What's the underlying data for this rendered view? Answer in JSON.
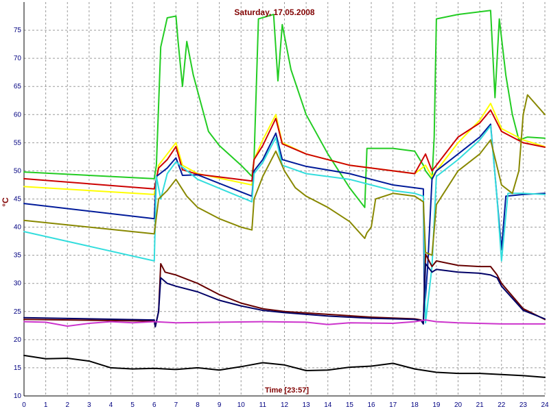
{
  "chart_data": {
    "type": "line",
    "title": "Saturday, 17.05.2008",
    "xlabel": "Time [23:57]",
    "ylabel": "°C",
    "xlim": [
      0,
      24
    ],
    "ylim": [
      10,
      80
    ],
    "x_ticks": [
      0,
      1,
      2,
      3,
      4,
      5,
      6,
      7,
      8,
      9,
      10,
      11,
      12,
      13,
      14,
      15,
      16,
      17,
      18,
      19,
      20,
      21,
      22,
      23,
      24
    ],
    "y_ticks": [
      10,
      15,
      20,
      25,
      30,
      35,
      40,
      45,
      50,
      55,
      60,
      65,
      70,
      75
    ],
    "grid": true,
    "series": [
      {
        "color": "#22cc22",
        "points": [
          [
            0,
            49.8
          ],
          [
            6,
            48.6
          ],
          [
            6.1,
            51
          ],
          [
            6.3,
            72
          ],
          [
            6.6,
            77.2
          ],
          [
            7.0,
            77.5
          ],
          [
            7.1,
            73
          ],
          [
            7.3,
            65
          ],
          [
            7.5,
            73
          ],
          [
            7.8,
            67
          ],
          [
            8.5,
            57
          ],
          [
            9,
            54.5
          ],
          [
            10,
            51
          ],
          [
            10.5,
            49
          ],
          [
            10.6,
            52
          ],
          [
            10.8,
            77
          ],
          [
            11.5,
            77.8
          ],
          [
            11.7,
            66
          ],
          [
            11.9,
            76
          ],
          [
            12.3,
            68
          ],
          [
            13,
            60
          ],
          [
            14,
            53
          ],
          [
            15,
            47
          ],
          [
            15.7,
            43.5
          ],
          [
            15.8,
            54
          ],
          [
            17,
            54
          ],
          [
            18,
            53.5
          ],
          [
            18.4,
            51
          ],
          [
            18.5,
            50
          ],
          [
            18.8,
            48.5
          ],
          [
            18.9,
            56
          ],
          [
            19.0,
            77
          ],
          [
            20,
            77.8
          ],
          [
            21.5,
            78.5
          ],
          [
            21.7,
            63
          ],
          [
            21.9,
            77
          ],
          [
            22.2,
            67
          ],
          [
            22.5,
            60
          ],
          [
            22.8,
            55.5
          ],
          [
            23.2,
            56
          ],
          [
            24,
            55.8
          ]
        ]
      },
      {
        "color": "#ffff00",
        "points": [
          [
            0,
            47.2
          ],
          [
            6,
            45.8
          ],
          [
            6.2,
            51
          ],
          [
            6.6,
            53
          ],
          [
            7,
            55
          ],
          [
            7.3,
            51
          ],
          [
            8,
            49.5
          ],
          [
            10.5,
            47.5
          ],
          [
            10.6,
            52
          ],
          [
            11,
            55.5
          ],
          [
            11.6,
            60
          ],
          [
            11.9,
            55
          ],
          [
            13,
            53
          ],
          [
            15,
            51
          ],
          [
            16,
            50.5
          ],
          [
            17,
            50
          ],
          [
            18,
            49.5
          ],
          [
            18.5,
            51
          ],
          [
            18.8,
            49
          ],
          [
            19,
            50
          ],
          [
            20,
            55
          ],
          [
            21,
            59
          ],
          [
            21.5,
            62
          ],
          [
            22,
            57.5
          ],
          [
            23,
            55.5
          ],
          [
            24,
            54.3
          ]
        ]
      },
      {
        "color": "#cc0000",
        "points": [
          [
            0,
            48.6
          ],
          [
            6,
            46.8
          ],
          [
            6.2,
            50.5
          ],
          [
            6.6,
            52
          ],
          [
            7,
            54.3
          ],
          [
            7.3,
            50.2
          ],
          [
            8,
            49.4
          ],
          [
            10.5,
            48.2
          ],
          [
            10.6,
            52
          ],
          [
            11,
            54.5
          ],
          [
            11.6,
            59.3
          ],
          [
            11.9,
            54.8
          ],
          [
            13,
            53
          ],
          [
            15,
            51
          ],
          [
            17,
            50
          ],
          [
            18,
            49.5
          ],
          [
            18.5,
            53
          ],
          [
            18.8,
            50
          ],
          [
            19,
            51
          ],
          [
            20,
            56
          ],
          [
            21,
            58.5
          ],
          [
            21.5,
            60.8
          ],
          [
            22,
            57
          ],
          [
            23,
            55
          ],
          [
            24,
            54.2
          ]
        ]
      },
      {
        "color": "#001a99",
        "points": [
          [
            0,
            44.2
          ],
          [
            6,
            41.5
          ],
          [
            6.1,
            49
          ],
          [
            6.6,
            50.5
          ],
          [
            7,
            52.3
          ],
          [
            7.3,
            49.2
          ],
          [
            8,
            49.3
          ],
          [
            10.5,
            45.5
          ],
          [
            10.6,
            50
          ],
          [
            11,
            52
          ],
          [
            11.6,
            56.7
          ],
          [
            11.9,
            52
          ],
          [
            13,
            50.8
          ],
          [
            15,
            49.5
          ],
          [
            16,
            48.5
          ],
          [
            17,
            47.5
          ],
          [
            18,
            47
          ],
          [
            18.4,
            46.8
          ],
          [
            18.45,
            25
          ],
          [
            18.6,
            33
          ],
          [
            18.8,
            48.5
          ],
          [
            19,
            50
          ],
          [
            20,
            53
          ],
          [
            21,
            56
          ],
          [
            21.5,
            58.3
          ],
          [
            21.8,
            45
          ],
          [
            22,
            36
          ],
          [
            22.2,
            45.5
          ],
          [
            23,
            45.8
          ],
          [
            24,
            46
          ]
        ]
      },
      {
        "color": "#33dddd",
        "points": [
          [
            0,
            39.2
          ],
          [
            6,
            34
          ],
          [
            6.1,
            49
          ],
          [
            6.3,
            45
          ],
          [
            6.6,
            49.5
          ],
          [
            7,
            51.6
          ],
          [
            8,
            48.5
          ],
          [
            10.5,
            44.5
          ],
          [
            10.6,
            49.5
          ],
          [
            11,
            51.5
          ],
          [
            11.6,
            55.9
          ],
          [
            11.9,
            51
          ],
          [
            13,
            49.5
          ],
          [
            15,
            48.5
          ],
          [
            16,
            47.5
          ],
          [
            17,
            46.5
          ],
          [
            18,
            46
          ],
          [
            18.4,
            45.5
          ],
          [
            18.5,
            23
          ],
          [
            18.8,
            33
          ],
          [
            19,
            49
          ],
          [
            20,
            52
          ],
          [
            21,
            55.5
          ],
          [
            21.5,
            58
          ],
          [
            21.8,
            45
          ],
          [
            22,
            34
          ],
          [
            22.3,
            46
          ],
          [
            23,
            46
          ],
          [
            24,
            45.8
          ]
        ]
      },
      {
        "color": "#888800",
        "points": [
          [
            0,
            41.2
          ],
          [
            6,
            38.8
          ],
          [
            6.2,
            45
          ],
          [
            6.6,
            46.5
          ],
          [
            7,
            48.5
          ],
          [
            7.5,
            45.5
          ],
          [
            8,
            43.5
          ],
          [
            9,
            41.5
          ],
          [
            10,
            40
          ],
          [
            10.5,
            39.5
          ],
          [
            10.6,
            45
          ],
          [
            11,
            49
          ],
          [
            11.6,
            53.5
          ],
          [
            12,
            50
          ],
          [
            12.5,
            47
          ],
          [
            13,
            45.5
          ],
          [
            14,
            43.5
          ],
          [
            15,
            41
          ],
          [
            15.7,
            38
          ],
          [
            15.8,
            39
          ],
          [
            16,
            40
          ],
          [
            16.2,
            45
          ],
          [
            17,
            46
          ],
          [
            18,
            45.5
          ],
          [
            18.4,
            44.5
          ],
          [
            18.5,
            35.5
          ],
          [
            18.8,
            35
          ],
          [
            19,
            44
          ],
          [
            20,
            50
          ],
          [
            21,
            53
          ],
          [
            21.5,
            55.5
          ],
          [
            22,
            47.5
          ],
          [
            22.5,
            46
          ],
          [
            22.8,
            50
          ],
          [
            23,
            60
          ],
          [
            23.2,
            63.5
          ],
          [
            24,
            60
          ]
        ]
      },
      {
        "color": "#660000",
        "points": [
          [
            0,
            23.6
          ],
          [
            6,
            23.3
          ],
          [
            6.05,
            22.3
          ],
          [
            6.2,
            25
          ],
          [
            6.3,
            33.5
          ],
          [
            6.5,
            32
          ],
          [
            7,
            31.5
          ],
          [
            8,
            30
          ],
          [
            9,
            28
          ],
          [
            10,
            26.5
          ],
          [
            11,
            25.5
          ],
          [
            12,
            25
          ],
          [
            14,
            24.5
          ],
          [
            16,
            24
          ],
          [
            18,
            23.7
          ],
          [
            18.3,
            23.5
          ],
          [
            18.4,
            23
          ],
          [
            18.5,
            35.2
          ],
          [
            18.8,
            33
          ],
          [
            19,
            34
          ],
          [
            20,
            33.2
          ],
          [
            21,
            33
          ],
          [
            21.5,
            33
          ],
          [
            21.8,
            31.5
          ],
          [
            22,
            30
          ],
          [
            23,
            25.5
          ],
          [
            24,
            23.6
          ]
        ]
      },
      {
        "color": "#000066",
        "points": [
          [
            0,
            23.9
          ],
          [
            6,
            23.5
          ],
          [
            6.05,
            22.3
          ],
          [
            6.2,
            25
          ],
          [
            6.3,
            31
          ],
          [
            6.6,
            30
          ],
          [
            7,
            29.5
          ],
          [
            8,
            28.5
          ],
          [
            9,
            27
          ],
          [
            10,
            26
          ],
          [
            11,
            25.2
          ],
          [
            12,
            24.8
          ],
          [
            14,
            24.2
          ],
          [
            16,
            23.8
          ],
          [
            18,
            23.6
          ],
          [
            18.3,
            23.4
          ],
          [
            18.4,
            22.8
          ],
          [
            18.5,
            33.5
          ],
          [
            18.8,
            32
          ],
          [
            19,
            32.5
          ],
          [
            20,
            32
          ],
          [
            21,
            31.8
          ],
          [
            21.5,
            31.5
          ],
          [
            21.8,
            31
          ],
          [
            22,
            29.5
          ],
          [
            23,
            25.2
          ],
          [
            24,
            23.7
          ]
        ]
      },
      {
        "color": "#cc33cc",
        "points": [
          [
            0,
            23.2
          ],
          [
            1,
            23.1
          ],
          [
            2,
            22.4
          ],
          [
            3,
            22.9
          ],
          [
            4,
            23.2
          ],
          [
            5,
            23.0
          ],
          [
            6,
            23.2
          ],
          [
            7,
            23.0
          ],
          [
            9,
            23.1
          ],
          [
            11,
            23.2
          ],
          [
            13,
            23.1
          ],
          [
            14,
            22.7
          ],
          [
            15,
            23.0
          ],
          [
            17,
            22.9
          ],
          [
            18,
            23.2
          ],
          [
            18.5,
            23.5
          ],
          [
            19,
            23.2
          ],
          [
            20,
            23.0
          ],
          [
            22,
            22.8
          ],
          [
            24,
            22.8
          ]
        ]
      },
      {
        "color": "#000000",
        "points": [
          [
            0,
            17.2
          ],
          [
            1,
            16.6
          ],
          [
            2,
            16.7
          ],
          [
            3,
            16.2
          ],
          [
            4,
            15.0
          ],
          [
            5,
            14.8
          ],
          [
            6,
            14.9
          ],
          [
            7,
            14.7
          ],
          [
            8,
            15.0
          ],
          [
            9,
            14.6
          ],
          [
            10,
            15.2
          ],
          [
            11,
            15.9
          ],
          [
            12,
            15.5
          ],
          [
            13,
            14.5
          ],
          [
            14,
            14.6
          ],
          [
            15,
            15.1
          ],
          [
            16,
            15.3
          ],
          [
            17,
            15.8
          ],
          [
            18,
            14.8
          ],
          [
            19,
            14.2
          ],
          [
            20,
            14.0
          ],
          [
            21,
            14.0
          ],
          [
            22,
            13.8
          ],
          [
            23,
            13.6
          ],
          [
            24,
            13.3
          ]
        ]
      }
    ]
  }
}
